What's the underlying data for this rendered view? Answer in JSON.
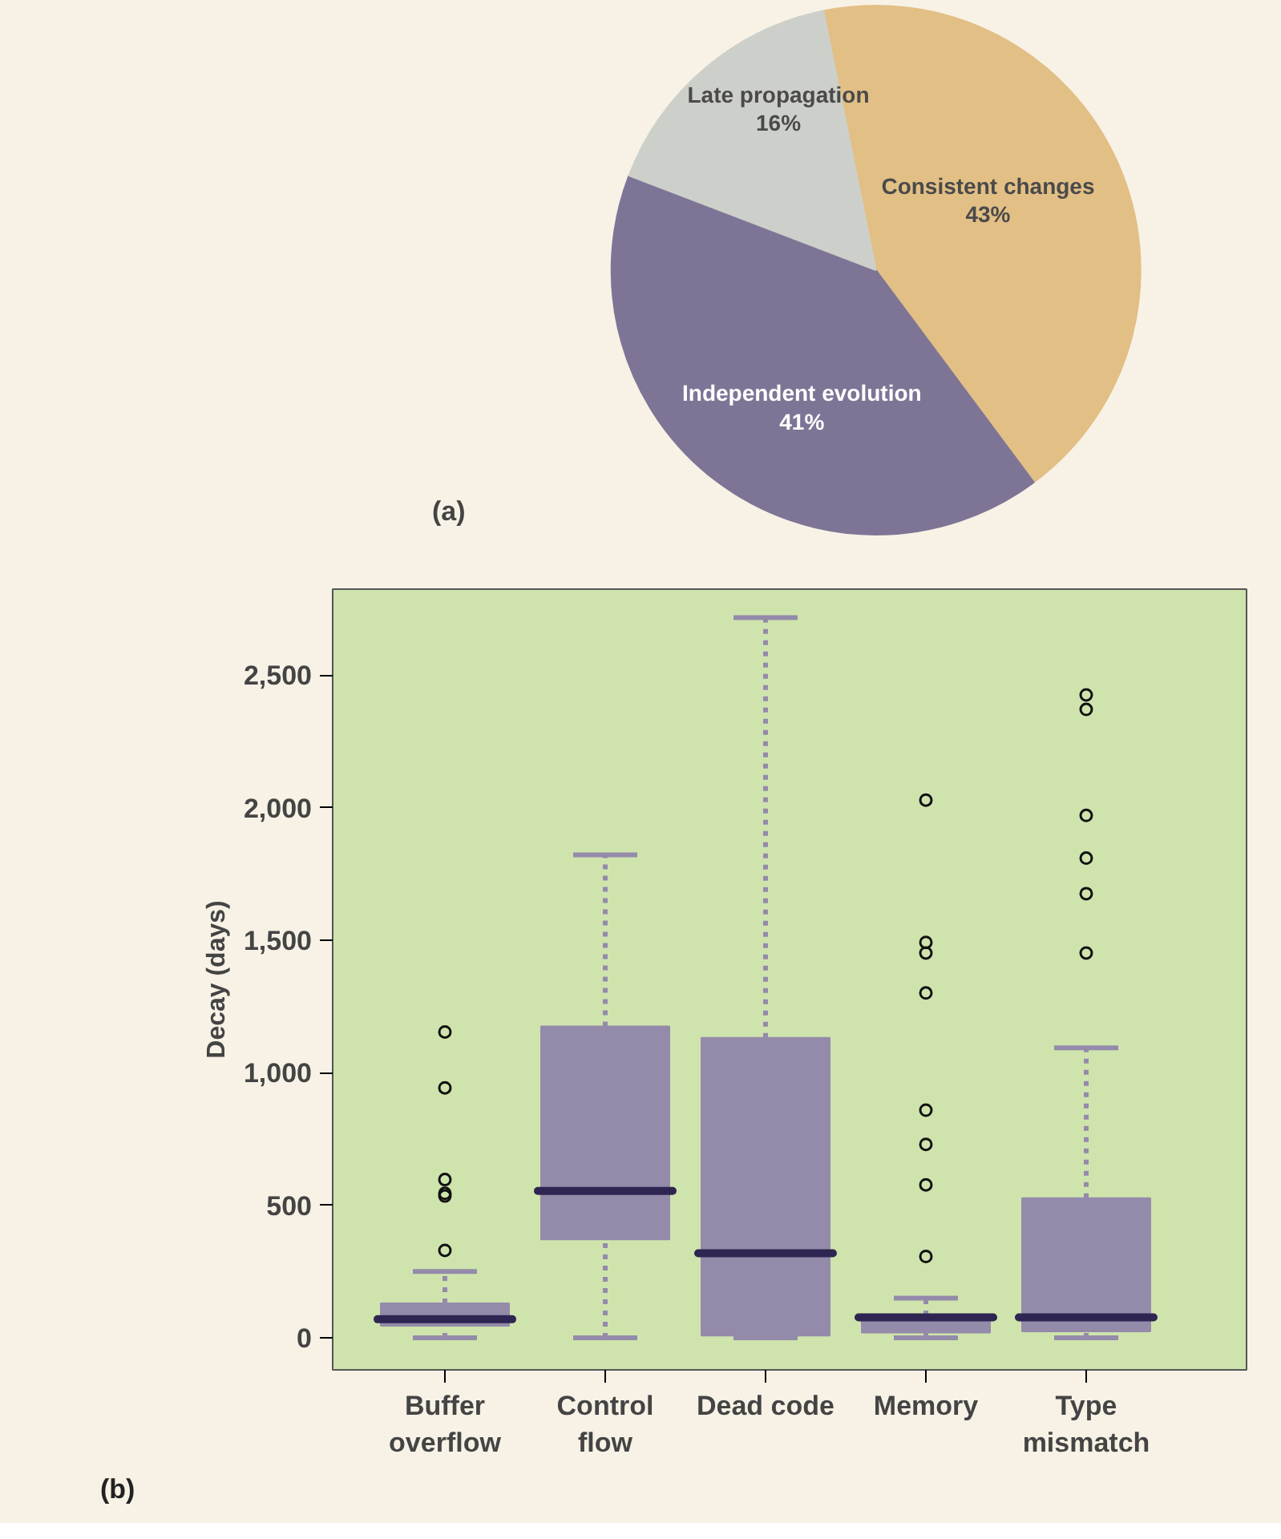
{
  "chart_data": [
    {
      "type": "pie",
      "categories": [
        "Consistent changes",
        "Independent evolution",
        "Late propagation"
      ],
      "values": [
        43,
        41,
        16
      ],
      "colors": [
        "#e2bf85",
        "#7e7596",
        "#cdd0ca"
      ],
      "value_labels": [
        "43%",
        "41%",
        "16%"
      ],
      "annotations": [
        "(a)"
      ]
    },
    {
      "type": "box",
      "categories": [
        "Buffer overflow",
        "Control flow",
        "Dead code",
        "Memory",
        "Type mismatch"
      ],
      "ylabel": "Decay (days)",
      "color": "#948aaa",
      "ylim": [
        -121,
        2825
      ],
      "yticks": [
        0,
        500,
        {
          "value": 1000,
          "label": "1,000"
        },
        {
          "value": 1500,
          "label": "1,500"
        },
        {
          "value": 2000,
          "label": "2,000"
        },
        {
          "value": 2500,
          "label": "2,500"
        }
      ],
      "annotations": [
        "(b)"
      ],
      "boxes": [
        {
          "low": 0,
          "q1": 45,
          "median": 70,
          "q3": 130,
          "high": 250,
          "outliers": [
            330,
            535,
            545,
            597,
            943,
            1154
          ]
        },
        {
          "low": 0,
          "q1": 371,
          "median": 554,
          "q3": 1175,
          "high": 1822
        },
        {
          "low": 0,
          "q1": 8,
          "median": 319,
          "q3": 1132,
          "high": 2718
        },
        {
          "low": 0,
          "q1": 20,
          "median": 77,
          "q3": 85,
          "high": 150,
          "outliers": [
            307,
            577,
            730,
            859,
            1301,
            1452,
            1492,
            2029
          ]
        },
        {
          "low": 0,
          "q1": 24,
          "median": 77,
          "q3": 527,
          "high": 1094,
          "outliers": [
            1452,
            1676,
            1810,
            1971,
            2371,
            2426
          ]
        }
      ]
    }
  ]
}
